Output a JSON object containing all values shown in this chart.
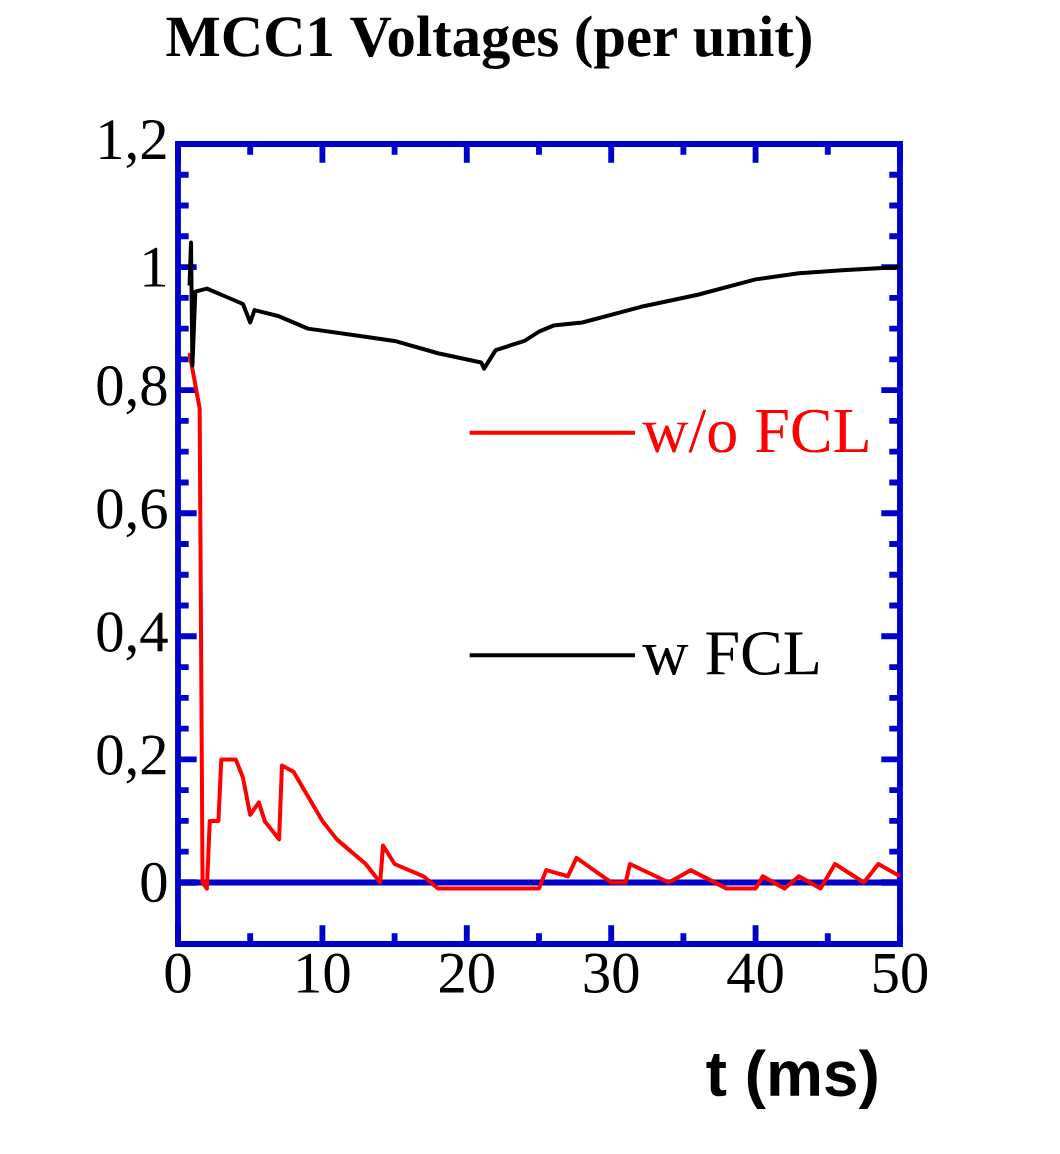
{
  "chart_data": {
    "type": "line",
    "title": "MCC1 Voltages (per unit)",
    "xlabel": "t (ms)",
    "xlim": [
      0,
      50
    ],
    "ylim": [
      -0.1,
      1.2
    ],
    "xticks": [
      0,
      10,
      20,
      30,
      40,
      50
    ],
    "yticks": [
      0,
      {
        "value": 0.2,
        "label": "0,2"
      },
      {
        "value": 0.4,
        "label": "0,4"
      },
      {
        "value": 0.6,
        "label": "0,6"
      },
      {
        "value": 0.8,
        "label": "0,8"
      },
      1,
      {
        "value": 1.2,
        "label": "1,2"
      }
    ],
    "grid": false,
    "legend": "right",
    "marker": "none",
    "line_style": "solid",
    "ref_lines": [
      {
        "axis": "y",
        "value": 0,
        "color": "#0000cc"
      }
    ],
    "series": [
      {
        "name": "w/o FCL",
        "color": "#ff0000",
        "x": [
          0.8,
          1.5,
          1.7,
          2.0,
          2.2,
          2.8,
          3.0,
          4.0,
          4.5,
          5.0,
          5.6,
          6.0,
          7.0,
          7.2,
          8.0,
          9.0,
          10.0,
          11.0,
          13.0,
          14.0,
          14.2,
          15.0,
          17.0,
          18.0,
          25.0,
          25.5,
          27.0,
          27.6,
          30.0,
          31.0,
          31.3,
          34.0,
          35.5,
          38.0,
          40.0,
          40.5,
          42.0,
          43.0,
          44.5,
          45.5,
          47.5,
          48.5,
          50.0
        ],
        "values": [
          0.86,
          0.77,
          0.0,
          -0.01,
          0.1,
          0.1,
          0.2,
          0.2,
          0.17,
          0.11,
          0.13,
          0.1,
          0.07,
          0.19,
          0.18,
          0.14,
          0.1,
          0.07,
          0.03,
          0.0,
          0.06,
          0.03,
          0.01,
          -0.01,
          -0.01,
          0.02,
          0.01,
          0.04,
          0.0,
          0.0,
          0.03,
          0.0,
          0.02,
          -0.01,
          -0.01,
          0.01,
          -0.01,
          0.01,
          -0.01,
          0.03,
          0.0,
          0.03,
          0.01
        ]
      },
      {
        "name": "w FCL",
        "color": "#000000",
        "x": [
          0.8,
          0.9,
          1.0,
          1.2,
          2.0,
          3.0,
          4.5,
          5.0,
          5.3,
          7.0,
          9.0,
          12.0,
          15.0,
          18.0,
          21.0,
          21.2,
          22.0,
          24.0,
          25.0,
          26.0,
          28.0,
          32.0,
          36.0,
          40.0,
          43.0,
          46.0,
          50.0
        ],
        "values": [
          0.97,
          1.04,
          0.84,
          0.96,
          0.965,
          0.955,
          0.94,
          0.91,
          0.93,
          0.92,
          0.9,
          0.89,
          0.88,
          0.86,
          0.845,
          0.835,
          0.865,
          0.88,
          0.895,
          0.905,
          0.91,
          0.935,
          0.955,
          0.98,
          0.99,
          0.995,
          1.0
        ]
      }
    ]
  }
}
